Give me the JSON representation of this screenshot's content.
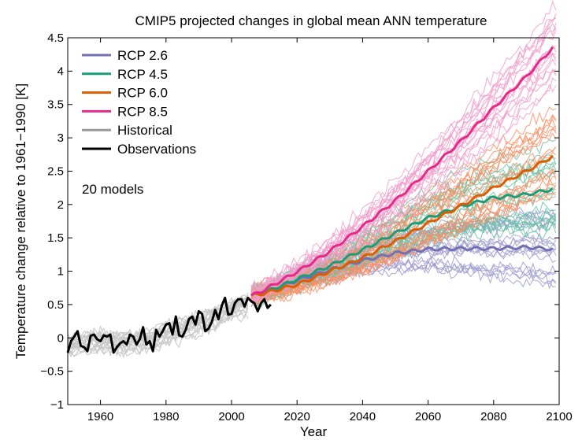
{
  "chart_data": {
    "type": "line",
    "title": "CMIP5 projected changes in global mean ANN temperature",
    "xlabel": "Year",
    "ylabel": "Temperature change relative to 1961−1990 [K]",
    "xlim": [
      1950,
      2100
    ],
    "ylim": [
      -1,
      4.5
    ],
    "xticks": [
      1960,
      1980,
      2000,
      2020,
      2040,
      2060,
      2080,
      2100
    ],
    "yticks": [
      -1,
      -0.5,
      0,
      0.5,
      1,
      1.5,
      2,
      2.5,
      3,
      3.5,
      4,
      4.5
    ],
    "annotation": "20 models",
    "legend_position": "top-left",
    "series": [
      {
        "name": "RCP 2.6",
        "color": "#7570b3",
        "ensemble_color": "#9c9ad0",
        "x": [
          2006,
          2010,
          2020,
          2030,
          2040,
          2050,
          2060,
          2070,
          2080,
          2090,
          2098
        ],
        "values": [
          0.63,
          0.68,
          0.86,
          1.02,
          1.16,
          1.27,
          1.33,
          1.34,
          1.34,
          1.36,
          1.33
        ]
      },
      {
        "name": "RCP 4.5",
        "color": "#1b9e77",
        "ensemble_color": "#66c2a5",
        "x": [
          2006,
          2010,
          2020,
          2030,
          2040,
          2050,
          2060,
          2070,
          2080,
          2090,
          2098
        ],
        "values": [
          0.63,
          0.68,
          0.88,
          1.08,
          1.32,
          1.57,
          1.8,
          1.97,
          2.1,
          2.15,
          2.23
        ]
      },
      {
        "name": "RCP 6.0",
        "color": "#d95f02",
        "ensemble_color": "#fc8d62",
        "x": [
          2006,
          2010,
          2020,
          2030,
          2040,
          2050,
          2060,
          2070,
          2080,
          2090,
          2098
        ],
        "values": [
          0.63,
          0.67,
          0.8,
          1.0,
          1.2,
          1.45,
          1.72,
          1.98,
          2.25,
          2.5,
          2.72
        ]
      },
      {
        "name": "RCP 8.5",
        "color": "#e7298a",
        "ensemble_color": "#f19ecb",
        "x": [
          2006,
          2010,
          2020,
          2030,
          2040,
          2050,
          2060,
          2070,
          2080,
          2090,
          2098
        ],
        "values": [
          0.63,
          0.72,
          0.99,
          1.3,
          1.67,
          2.06,
          2.5,
          2.95,
          3.45,
          3.92,
          4.35
        ]
      },
      {
        "name": "Historical",
        "color": "#999999",
        "ensemble_color": "#c8c8c8",
        "x": [
          1950,
          1960,
          1970,
          1980,
          1990,
          2000,
          2005
        ],
        "values": [
          -0.1,
          -0.05,
          -0.08,
          0.05,
          0.22,
          0.42,
          0.5
        ]
      },
      {
        "name": "Observations",
        "color": "#000000",
        "x": [
          1950,
          1951,
          1952,
          1953,
          1954,
          1955,
          1956,
          1957,
          1958,
          1959,
          1960,
          1961,
          1962,
          1963,
          1964,
          1965,
          1966,
          1967,
          1968,
          1969,
          1970,
          1971,
          1972,
          1973,
          1974,
          1975,
          1976,
          1977,
          1978,
          1979,
          1980,
          1981,
          1982,
          1983,
          1984,
          1985,
          1986,
          1987,
          1988,
          1989,
          1990,
          1991,
          1992,
          1993,
          1994,
          1995,
          1996,
          1997,
          1998,
          1999,
          2000,
          2001,
          2002,
          2003,
          2004,
          2005,
          2006,
          2007,
          2008,
          2009,
          2010,
          2011,
          2012
        ],
        "values": [
          -0.22,
          -0.05,
          0.02,
          0.1,
          -0.12,
          -0.14,
          -0.2,
          0.03,
          0.05,
          -0.02,
          -0.05,
          0.04,
          0.02,
          0.05,
          -0.22,
          -0.14,
          -0.08,
          -0.05,
          -0.1,
          0.05,
          0.02,
          -0.1,
          -0.02,
          0.16,
          -0.1,
          -0.05,
          -0.2,
          0.12,
          0.02,
          0.1,
          0.2,
          0.22,
          0.05,
          0.32,
          0.04,
          0.02,
          0.12,
          0.28,
          0.32,
          0.2,
          0.4,
          0.36,
          0.1,
          0.14,
          0.24,
          0.42,
          0.28,
          0.48,
          0.6,
          0.35,
          0.36,
          0.52,
          0.58,
          0.58,
          0.47,
          0.6,
          0.55,
          0.52,
          0.4,
          0.52,
          0.58,
          0.45,
          0.5
        ]
      }
    ]
  }
}
